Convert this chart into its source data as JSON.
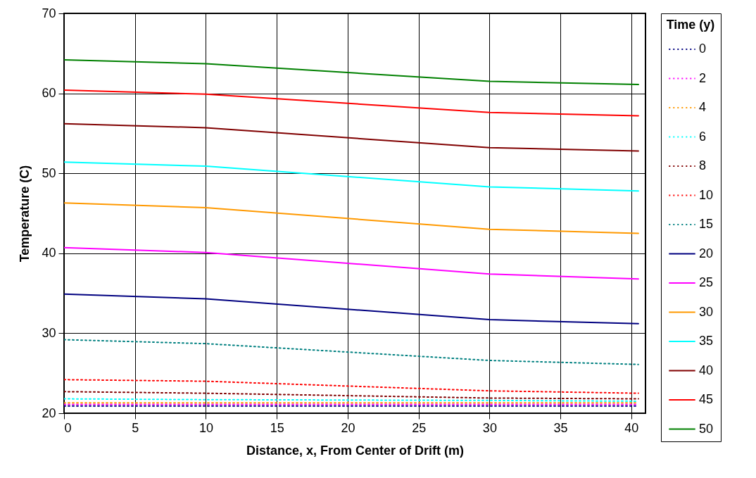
{
  "chart_data": {
    "type": "line",
    "xlabel": "Distance, x, From Center of Drift (m)",
    "ylabel": "Temperature (C)",
    "legend_title": "Time (y)",
    "x": [
      0,
      10,
      30,
      40.5
    ],
    "series": [
      {
        "name": "0",
        "color": "#000080",
        "line_style": "dotted",
        "values": [
          20.9,
          20.9,
          20.9,
          20.9
        ]
      },
      {
        "name": "2",
        "color": "#ff00ff",
        "line_style": "dotted",
        "values": [
          21.1,
          21.1,
          21.1,
          21.1
        ]
      },
      {
        "name": "4",
        "color": "#ff9900",
        "line_style": "dotted",
        "values": [
          21.3,
          21.3,
          21.3,
          21.3
        ]
      },
      {
        "name": "6",
        "color": "#00ffff",
        "line_style": "dotted",
        "values": [
          21.8,
          21.7,
          21.6,
          21.5
        ]
      },
      {
        "name": "8",
        "color": "#800000",
        "line_style": "dotted",
        "values": [
          22.7,
          22.5,
          21.9,
          21.8
        ]
      },
      {
        "name": "10",
        "color": "#ff0000",
        "line_style": "dotted",
        "values": [
          24.2,
          24.0,
          22.8,
          22.5
        ]
      },
      {
        "name": "15",
        "color": "#008080",
        "line_style": "dotted",
        "values": [
          29.2,
          28.7,
          26.6,
          26.1
        ]
      },
      {
        "name": "20",
        "color": "#000080",
        "line_style": "solid",
        "values": [
          34.9,
          34.3,
          31.7,
          31.2
        ]
      },
      {
        "name": "25",
        "color": "#ff00ff",
        "line_style": "solid",
        "values": [
          40.7,
          40.1,
          37.4,
          36.8
        ]
      },
      {
        "name": "30",
        "color": "#ff9900",
        "line_style": "solid",
        "values": [
          46.3,
          45.7,
          43.0,
          42.5
        ]
      },
      {
        "name": "35",
        "color": "#00ffff",
        "line_style": "solid",
        "values": [
          51.4,
          50.9,
          48.3,
          47.8
        ]
      },
      {
        "name": "40",
        "color": "#800000",
        "line_style": "solid",
        "values": [
          56.2,
          55.7,
          53.2,
          52.8
        ]
      },
      {
        "name": "45",
        "color": "#ff0000",
        "line_style": "solid",
        "values": [
          60.4,
          59.9,
          57.6,
          57.2
        ]
      },
      {
        "name": "50",
        "color": "#008000",
        "line_style": "solid",
        "values": [
          64.2,
          63.7,
          61.5,
          61.1
        ]
      }
    ],
    "xlim": [
      0,
      41
    ],
    "xticks": [
      0,
      5,
      10,
      15,
      20,
      25,
      30,
      35,
      40
    ],
    "ylim": [
      20,
      70
    ],
    "yticks": [
      20,
      30,
      40,
      50,
      60,
      70
    ],
    "grid": true,
    "legend": "right"
  }
}
